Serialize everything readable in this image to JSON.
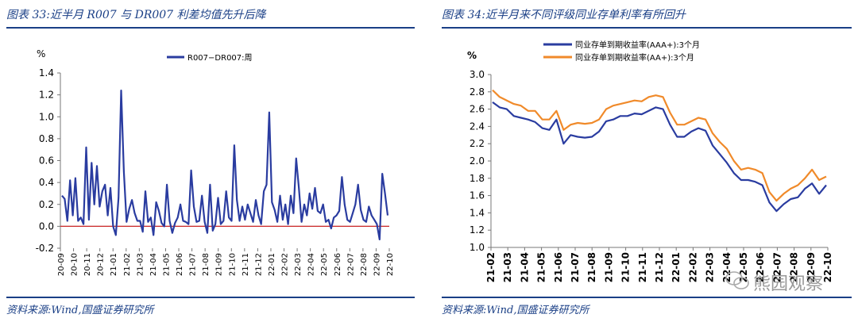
{
  "left_panel": {
    "title": "图表 33:近半月 R007 与 DR007 利差均值先升后降",
    "source": "资料来源:Wind,国盛证券研究所"
  },
  "right_panel": {
    "title": "图表 34:近半月来不同评级同业存单利率有所回升",
    "source": "资料来源:Wind,国盛证券研究所",
    "watermark": "熊园观察"
  },
  "colors": {
    "accent": "#1a3f86",
    "series_blue": "#2a3ca0",
    "series_orange": "#f08a2a",
    "zero_line": "#cc2a2a"
  },
  "chart_data": [
    {
      "type": "line",
      "title": "",
      "ylabel": "%",
      "ylim": [
        -0.2,
        1.4
      ],
      "yticks": [
        "1.4",
        "1.2",
        "1.0",
        "0.8",
        "0.6",
        "0.4",
        "0.2",
        "0.0",
        "-0.2"
      ],
      "xticks": [
        "20-09",
        "20-10",
        "20-11",
        "20-12",
        "21-01",
        "21-02",
        "21-03",
        "21-04",
        "21-05",
        "21-06",
        "21-07",
        "21-08",
        "21-09",
        "21-10",
        "21-11",
        "21-12",
        "22-01",
        "22-02",
        "22-03",
        "22-04",
        "22-05",
        "22-06",
        "22-07",
        "22-08",
        "22-09",
        "22-10"
      ],
      "legend_position": "top-center",
      "reference_line": 0.0,
      "series": [
        {
          "name": "R007−DR007:周",
          "values": [
            0.28,
            0.25,
            0.05,
            0.42,
            0.1,
            0.44,
            0.05,
            0.08,
            0.02,
            0.72,
            0.06,
            0.58,
            0.2,
            0.55,
            0.18,
            0.32,
            0.38,
            0.1,
            0.35,
            0.0,
            -0.08,
            0.26,
            1.24,
            0.5,
            0.04,
            0.16,
            0.24,
            0.12,
            0.05,
            0.05,
            -0.05,
            0.32,
            0.04,
            0.08,
            -0.08,
            0.22,
            0.14,
            0.03,
            0.0,
            0.38,
            0.05,
            -0.06,
            0.03,
            0.08,
            0.2,
            0.05,
            0.04,
            0.02,
            0.51,
            0.18,
            0.04,
            0.05,
            0.28,
            0.04,
            -0.06,
            0.38,
            -0.04,
            0.02,
            0.26,
            0.02,
            0.05,
            0.32,
            0.08,
            0.05,
            0.74,
            0.24,
            0.05,
            0.18,
            0.06,
            0.2,
            0.12,
            0.04,
            0.24,
            0.1,
            0.02,
            0.32,
            0.38,
            1.04,
            0.22,
            0.15,
            0.04,
            0.28,
            0.06,
            0.2,
            0.02,
            0.28,
            0.12,
            0.62,
            0.35,
            0.04,
            0.2,
            0.1,
            0.3,
            0.16,
            0.35,
            0.14,
            0.12,
            0.2,
            0.04,
            0.06,
            -0.02,
            0.08,
            0.1,
            0.14,
            0.45,
            0.2,
            0.06,
            0.04,
            0.12,
            0.2,
            0.38,
            0.15,
            0.06,
            0.04,
            0.18,
            0.1,
            0.06,
            0.02,
            -0.12,
            0.48,
            0.3,
            0.1
          ]
        }
      ]
    },
    {
      "type": "line",
      "title": "",
      "ylabel": "%",
      "ylim": [
        1.0,
        3.0
      ],
      "yticks": [
        "3.0",
        "2.8",
        "2.6",
        "2.4",
        "2.2",
        "2.0",
        "1.8",
        "1.6",
        "1.4",
        "1.2",
        "1.0"
      ],
      "xticks": [
        "21-02",
        "21-03",
        "21-04",
        "21-05",
        "21-06",
        "21-07",
        "21-08",
        "21-09",
        "21-10",
        "21-11",
        "21-12",
        "22-01",
        "22-02",
        "22-03",
        "22-04",
        "22-05",
        "22-06",
        "22-07",
        "22-08",
        "22-09",
        "22-10"
      ],
      "legend_position": "top-right",
      "series": [
        {
          "name": "同业存单到期收益率(AAA+):3个月",
          "values": [
            2.68,
            2.62,
            2.6,
            2.52,
            2.5,
            2.48,
            2.45,
            2.38,
            2.36,
            2.48,
            2.2,
            2.3,
            2.28,
            2.27,
            2.28,
            2.34,
            2.46,
            2.48,
            2.52,
            2.52,
            2.55,
            2.54,
            2.58,
            2.62,
            2.6,
            2.42,
            2.28,
            2.28,
            2.34,
            2.38,
            2.35,
            2.18,
            2.08,
            1.98,
            1.86,
            1.78,
            1.78,
            1.76,
            1.72,
            1.52,
            1.42,
            1.5,
            1.56,
            1.58,
            1.68,
            1.74,
            1.62,
            1.72
          ]
        },
        {
          "name": "同业存单到期收益率(AA+):3个月",
          "values": [
            2.82,
            2.74,
            2.7,
            2.66,
            2.64,
            2.58,
            2.58,
            2.48,
            2.48,
            2.58,
            2.36,
            2.42,
            2.44,
            2.43,
            2.44,
            2.48,
            2.6,
            2.64,
            2.66,
            2.68,
            2.7,
            2.69,
            2.74,
            2.76,
            2.74,
            2.56,
            2.42,
            2.42,
            2.46,
            2.5,
            2.48,
            2.32,
            2.22,
            2.14,
            2.0,
            1.9,
            1.92,
            1.9,
            1.86,
            1.64,
            1.54,
            1.62,
            1.68,
            1.72,
            1.8,
            1.9,
            1.78,
            1.82
          ]
        }
      ]
    }
  ]
}
